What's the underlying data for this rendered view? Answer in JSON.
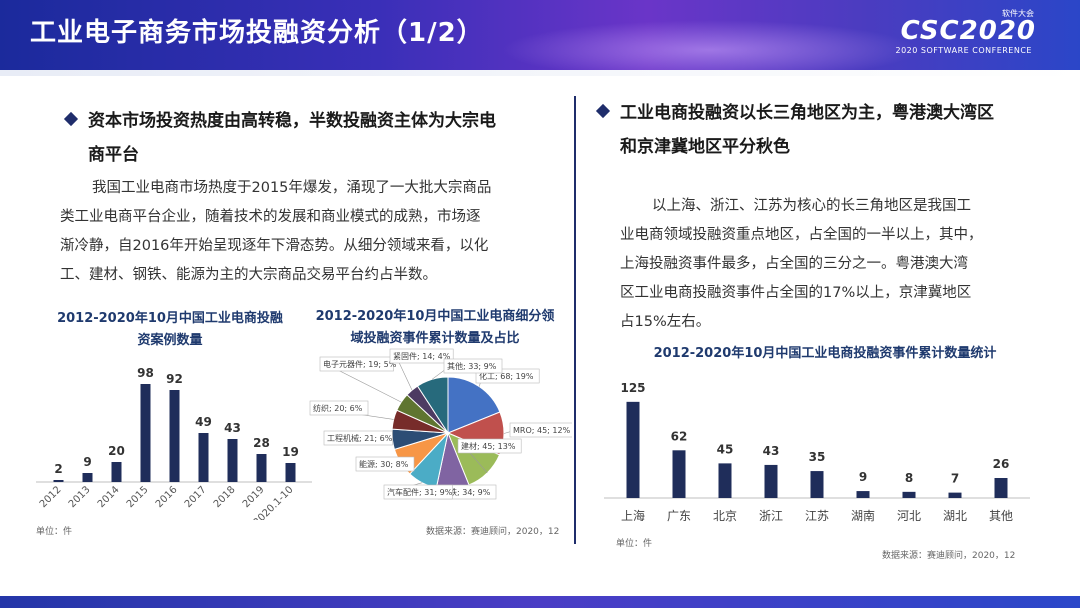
{
  "header": {
    "title": "工业电子商务市场投融资分析（1/2）",
    "logo_small": "软件大会",
    "logo_main": "CSC2020",
    "logo_sub": "2020 SOFTWARE CONFERENCE"
  },
  "left": {
    "bullet_line1": "资本市场投资热度由高转稳，半数投融资主体为大宗电",
    "bullet_line2": "商平台",
    "para_lines": [
      "我国工业电商市场热度于2015年爆发，涌现了一大批大宗商品",
      "类工业电商平台企业，随着技术的发展和商业模式的成熟，市场逐",
      "渐冷静，自2016年开始呈现逐年下滑态势。从细分领域来看，以化",
      "工、建材、钢铁、能源为主的大宗商品交易平台约占半数。"
    ]
  },
  "right": {
    "bullet_line1": "工业电商投融资以长三角地区为主，粤港澳大湾区",
    "bullet_line2": "和京津冀地区平分秋色",
    "para_lines": [
      "以上海、浙江、江苏为核心的长三角地区是我国工",
      "业电商领域投融资重点地区，占全国的一半以上，其中，",
      "上海投融资事件最多，占全国的三分之一。粤港澳大湾",
      "区工业电商投融资事件占全国的17%以上，京津冀地区",
      "占15%左右。"
    ]
  },
  "chart_data": [
    {
      "type": "bar",
      "title_line1": "2012-2020年10月中国工业电商投融",
      "title_line2": "资案例数量",
      "categories": [
        "2012",
        "2013",
        "2014",
        "2015",
        "2016",
        "2017",
        "2018",
        "2019",
        "2020.1-10"
      ],
      "values": [
        2,
        9,
        20,
        98,
        92,
        49,
        43,
        28,
        19
      ],
      "ylim": [
        0,
        100
      ],
      "unit_note": "单位：件",
      "color": "#1f2d5a"
    },
    {
      "type": "pie",
      "title_line1": "2012-2020年10月中国工业电商细分领",
      "title_line2": "域投融资事件累计数量及占比",
      "slices": [
        {
          "label": "化工",
          "value": 68,
          "pct": "19%",
          "color": "#4472c4"
        },
        {
          "label": "MRO",
          "value": 45,
          "pct": "12%",
          "color": "#c0504d"
        },
        {
          "label": "建材",
          "value": 45,
          "pct": "13%",
          "color": "#9bbb59"
        },
        {
          "label": "钢铁",
          "value": 34,
          "pct": "9%",
          "color": "#8064a2"
        },
        {
          "label": "汽车配件",
          "value": 31,
          "pct": "9%",
          "color": "#4bacc6"
        },
        {
          "label": "能源",
          "value": 30,
          "pct": "8%",
          "color": "#f79646"
        },
        {
          "label": "工程机械",
          "value": 21,
          "pct": "6%",
          "color": "#2c4d75"
        },
        {
          "label": "纺织",
          "value": 20,
          "pct": "6%",
          "color": "#772c2a"
        },
        {
          "label": "电子元器件",
          "value": 19,
          "pct": "5%",
          "color": "#5f7530"
        },
        {
          "label": "紧固件",
          "value": 14,
          "pct": "4%",
          "color": "#4d3b62"
        },
        {
          "label": "其他",
          "value": 33,
          "pct": "9%",
          "color": "#276a7c"
        }
      ],
      "source": "数据来源：赛迪顾问，2020，12"
    },
    {
      "type": "bar",
      "title": "2012-2020年10月中国工业电商投融资事件累计数量统计",
      "categories": [
        "上海",
        "广东",
        "北京",
        "浙江",
        "江苏",
        "湖南",
        "河北",
        "湖北",
        "其他"
      ],
      "values": [
        125,
        62,
        45,
        43,
        35,
        9,
        8,
        7,
        26
      ],
      "ylim": [
        0,
        130
      ],
      "unit_note": "单位：件",
      "source": "数据来源：赛迪顾问，2020，12",
      "color": "#1f2d5a"
    }
  ]
}
